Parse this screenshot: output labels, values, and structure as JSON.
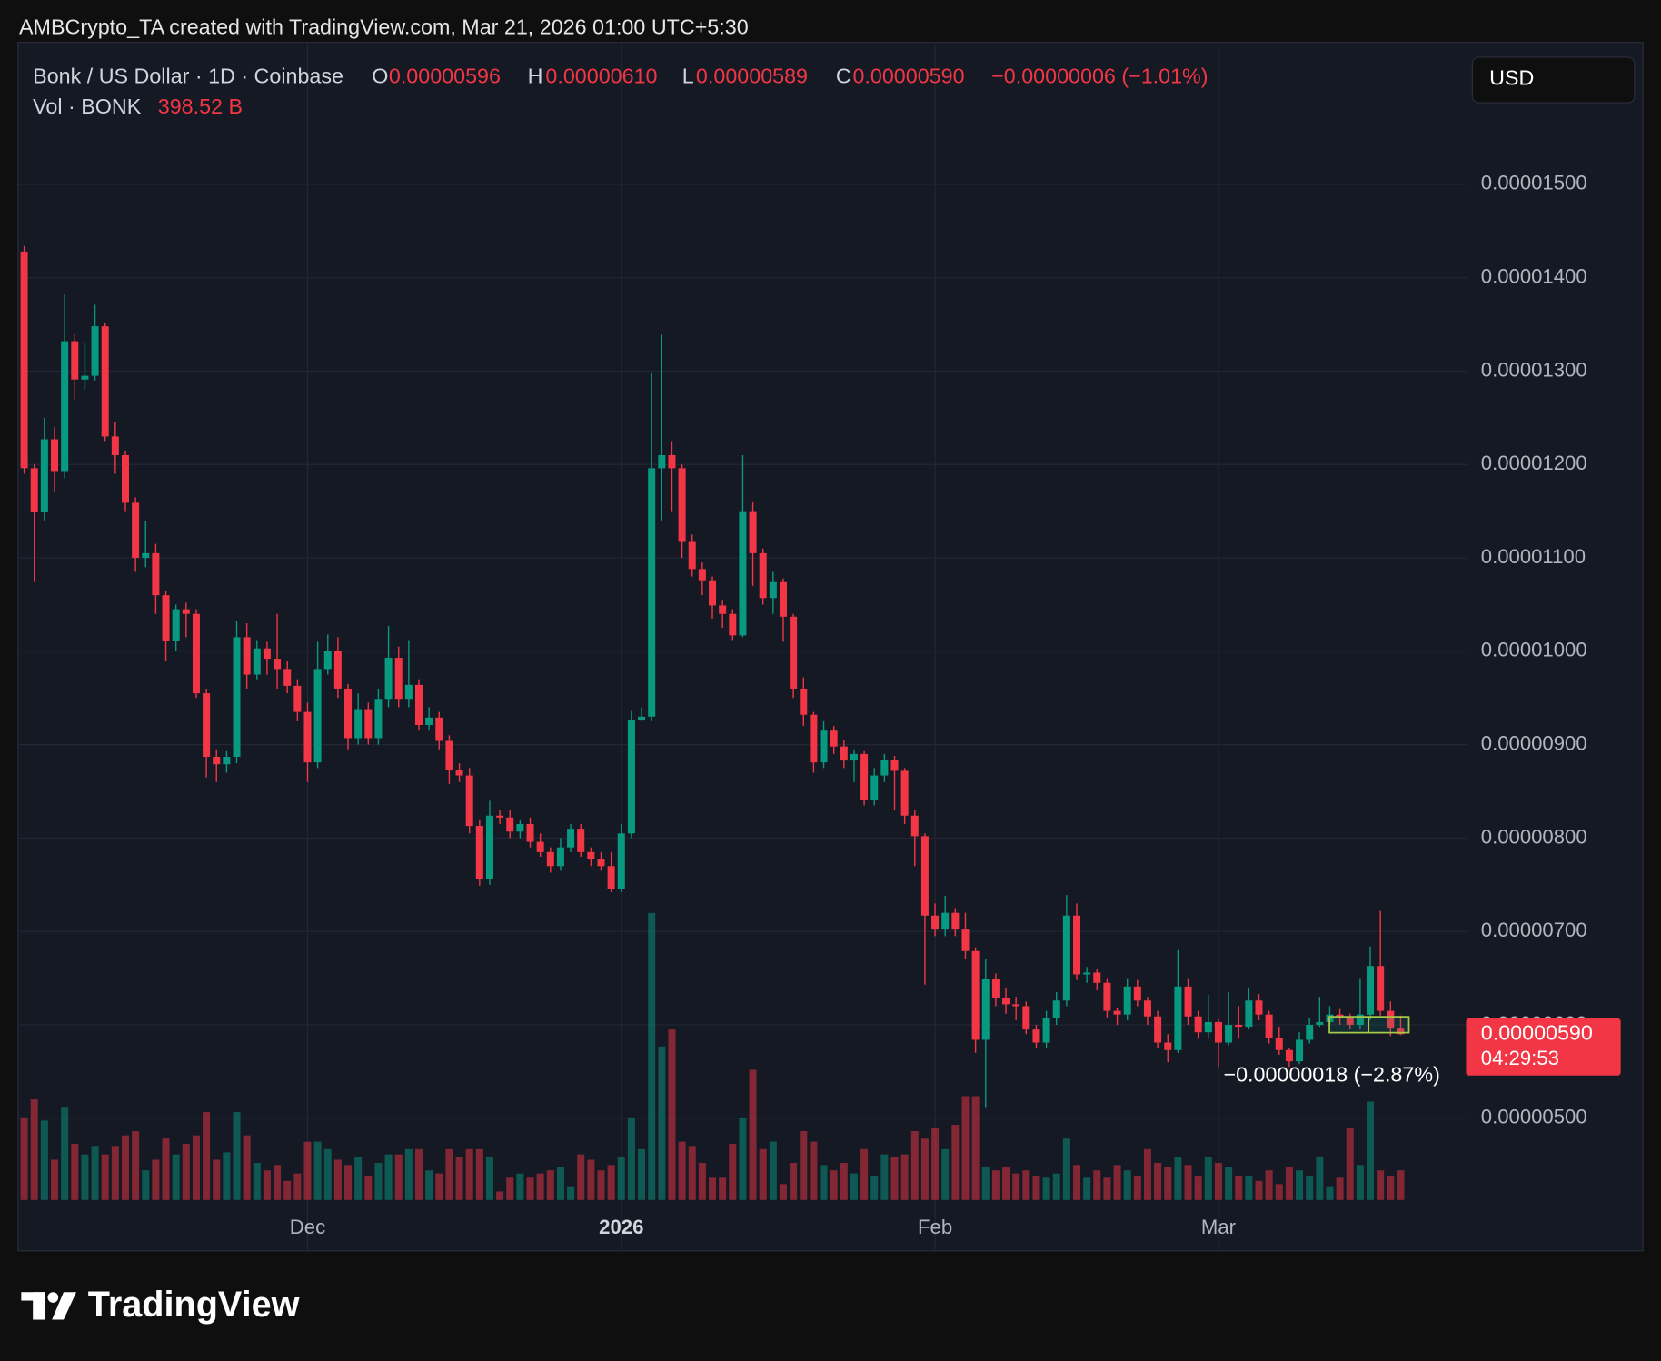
{
  "header": {
    "attribution": "AMBCrypto_TA created with TradingView.com, Mar 21, 2026 01:00 UTC+5:30"
  },
  "chart_data": {
    "type": "candlestick",
    "symbol": "Bonk / US Dollar · 1D · Coinbase",
    "ohlc_legend": {
      "o_label": "O",
      "open": "0.00000596",
      "h_label": "H",
      "high": "0.00000610",
      "l_label": "L",
      "low": "0.00000589",
      "c_label": "C",
      "close": "0.00000590",
      "change": "−0.00000006 (−1.01%)"
    },
    "volume_legend": {
      "label": "Vol · BONK",
      "value": "398.52 B"
    },
    "currency": "USD",
    "open": [
      1.428e-05,
      1.196e-05,
      1.149e-05,
      1.227e-05,
      1.193e-05,
      1.332e-05,
      1.291e-05,
      1.295e-05,
      1.348e-05,
      1.23e-05,
      1.21e-05,
      1.159e-05,
      1.1e-05,
      1.105e-05,
      1.06e-05,
      1.011e-05,
      1.045e-05,
      1.04e-05,
      9.55e-06,
      8.87e-06,
      8.79e-06,
      8.87e-06,
      1.015e-05,
      9.75e-06,
      1.003e-05,
      9.92e-06,
      9.81e-06,
      9.63e-06,
      9.35e-06,
      8.81e-06,
      9.81e-06,
      1e-05,
      9.6e-06,
      9.07e-06,
      9.38e-06,
      9.07e-06,
      9.49e-06,
      9.93e-06,
      9.49e-06,
      9.64e-06,
      9.21e-06,
      9.29e-06,
      9.04e-06,
      8.73e-06,
      8.67e-06,
      8.13e-06,
      7.56e-06,
      8.24e-06,
      8.22e-06,
      8.07e-06,
      8.15e-06,
      7.96e-06,
      7.85e-06,
      7.7e-06,
      7.9e-06,
      8.1e-06,
      7.85e-06,
      7.77e-06,
      7.7e-06,
      7.45e-06,
      8.05e-06,
      9.26e-06,
      9.3e-06,
      1.196e-05,
      1.21e-05,
      1.196e-05,
      1.117e-05,
      1.088e-05,
      1.076e-05,
      1.049e-05,
      1.04e-05,
      1.017e-05,
      1.15e-05,
      1.105e-05,
      1.057e-05,
      1.074e-05,
      1.037e-05,
      9.6e-06,
      9.32e-06,
      8.81e-06,
      9.15e-06,
      8.98e-06,
      8.83e-06,
      8.9e-06,
      8.41e-06,
      8.67e-06,
      8.84e-06,
      8.72e-06,
      8.24e-06,
      8.02e-06,
      7.17e-06,
      7.02e-06,
      7.2e-06,
      7.02e-06,
      6.79e-06,
      5.84e-06,
      6.49e-06,
      6.29e-06,
      6.22e-06,
      6.2e-06,
      5.95e-06,
      5.81e-06,
      6.07e-06,
      6.26e-06,
      7.17e-06,
      6.54e-06,
      6.56e-06,
      6.45e-06,
      6.15e-06,
      6.11e-06,
      6.41e-06,
      6.26e-06,
      6.09e-06,
      5.81e-06,
      5.73e-06,
      6.41e-06,
      6.09e-06,
      5.92e-06,
      6.03e-06,
      5.81e-06,
      6e-06,
      5.98e-06,
      6.26e-06,
      6.11e-06,
      5.86e-06,
      5.73e-06,
      5.61e-06,
      5.84e-06,
      6e-06,
      6.03e-06,
      6.11e-06,
      6.07e-06,
      6e-06,
      6.11e-06,
      6.63e-06,
      6.15e-06,
      5.96e-06
    ],
    "high": [
      1.434e-05,
      1.2e-05,
      1.25e-05,
      1.24e-05,
      1.382e-05,
      1.34e-05,
      1.33e-05,
      1.371e-05,
      1.352e-05,
      1.245e-05,
      1.215e-05,
      1.165e-05,
      1.14e-05,
      1.115e-05,
      1.065e-05,
      1.05e-05,
      1.052e-05,
      1.045e-05,
      9.6e-06,
      8.95e-06,
      8.93e-06,
      1.032e-05,
      1.03e-05,
      1.012e-05,
      1.01e-05,
      1.04e-05,
      9.9e-06,
      9.7e-06,
      9.45e-06,
      1.01e-05,
      1.018e-05,
      1.015e-05,
      9.65e-06,
      9.55e-06,
      9.45e-06,
      9.6e-06,
      1.027e-05,
      1.005e-05,
      1.012e-05,
      9.7e-06,
      9.4e-06,
      9.35e-06,
      9.1e-06,
      8.8e-06,
      8.75e-06,
      8.2e-06,
      8.4e-06,
      8.3e-06,
      8.3e-06,
      8.2e-06,
      8.22e-06,
      8.05e-06,
      7.9e-06,
      8e-06,
      8.15e-06,
      8.15e-06,
      7.9e-06,
      7.85e-06,
      7.85e-06,
      8.15e-06,
      9.36e-06,
      9.4e-06,
      1.298e-05,
      1.339e-05,
      1.225e-05,
      1.2e-05,
      1.125e-05,
      1.095e-05,
      1.08e-05,
      1.055e-05,
      1.045e-05,
      1.21e-05,
      1.16e-05,
      1.11e-05,
      1.085e-05,
      1.078e-05,
      1.04e-05,
      9.72e-06,
      9.35e-06,
      9.25e-06,
      9.2e-06,
      9.05e-06,
      8.95e-06,
      8.93e-06,
      8.75e-06,
      8.9e-06,
      8.88e-06,
      8.75e-06,
      8.3e-06,
      8.05e-06,
      7.3e-06,
      7.38e-06,
      7.25e-06,
      7.2e-06,
      6.83e-06,
      6.7e-06,
      6.55e-06,
      6.4e-06,
      6.3e-06,
      6.25e-06,
      6e-06,
      6.15e-06,
      6.35e-06,
      7.39e-06,
      7.3e-06,
      6.62e-06,
      6.6e-06,
      6.5e-06,
      6.18e-06,
      6.5e-06,
      6.48e-06,
      6.3e-06,
      6.15e-06,
      5.9e-06,
      6.8e-06,
      6.5e-06,
      6.15e-06,
      6.32e-06,
      6.06e-06,
      6.35e-06,
      6.2e-06,
      6.4e-06,
      6.33e-06,
      6.15e-06,
      5.98e-06,
      5.75e-06,
      5.92e-06,
      6.07e-06,
      6.3e-06,
      6.2e-06,
      6.17e-06,
      6.12e-06,
      6.5e-06,
      6.84e-06,
      7.22e-06,
      6.25e-06,
      6.1e-06
    ],
    "low": [
      1.19e-05,
      1.074e-05,
      1.14e-05,
      1.17e-05,
      1.185e-05,
      1.27e-05,
      1.28e-05,
      1.29e-05,
      1.225e-05,
      1.19e-05,
      1.15e-05,
      1.085e-05,
      1.09e-05,
      1.04e-05,
      9.9e-06,
      1e-05,
      1.015e-05,
      9.5e-06,
      8.65e-06,
      8.6e-06,
      8.7e-06,
      8.8e-06,
      9.6e-06,
      9.7e-06,
      9.75e-06,
      9.6e-06,
      9.55e-06,
      9.25e-06,
      8.6e-06,
      8.75e-06,
      9.75e-06,
      9.5e-06,
      8.95e-06,
      9e-06,
      9e-06,
      9e-06,
      9.4e-06,
      9.4e-06,
      9.4e-06,
      9.15e-06,
      9.15e-06,
      8.95e-06,
      8.58e-06,
      8.6e-06,
      8.05e-06,
      7.49e-06,
      7.5e-06,
      8.15e-06,
      8e-06,
      8e-06,
      7.9e-06,
      7.8e-06,
      7.63e-06,
      7.65e-06,
      7.85e-06,
      7.8e-06,
      7.7e-06,
      7.65e-06,
      7.42e-06,
      7.42e-06,
      8e-06,
      9.25e-06,
      9.25e-06,
      1.14e-05,
      1.15e-05,
      1.1e-05,
      1.08e-05,
      1.06e-05,
      1.035e-05,
      1.025e-05,
      1.012e-05,
      1.015e-05,
      1.07e-05,
      1.05e-05,
      1.04e-05,
      1.01e-05,
      9.5e-06,
      9.2e-06,
      8.7e-06,
      8.75e-06,
      8.9e-06,
      8.75e-06,
      8.6e-06,
      8.35e-06,
      8.35e-06,
      8.6e-06,
      8.3e-06,
      8.15e-06,
      7.7e-06,
      6.43e-06,
      6.95e-06,
      6.95e-06,
      6.95e-06,
      6.7e-06,
      5.7e-06,
      5.12e-06,
      6.2e-06,
      6.12e-06,
      6.05e-06,
      5.9e-06,
      5.75e-06,
      5.75e-06,
      6e-06,
      6.2e-06,
      6.48e-06,
      6.45e-06,
      6.37e-06,
      6.08e-06,
      6e-06,
      6.05e-06,
      6.2e-06,
      6e-06,
      5.75e-06,
      5.6e-06,
      5.7e-06,
      6e-06,
      5.85e-06,
      5.85e-06,
      5.55e-06,
      5.78e-06,
      5.85e-06,
      5.95e-06,
      6.05e-06,
      5.8e-06,
      5.68e-06,
      5.55e-06,
      5.58e-06,
      5.8e-06,
      5.98e-06,
      6e-06,
      6e-06,
      5.95e-06,
      5.95e-06,
      6.05e-06,
      6.1e-06,
      5.88e-06,
      5.89e-06
    ],
    "close": [
      1.196e-05,
      1.149e-05,
      1.227e-05,
      1.193e-05,
      1.332e-05,
      1.291e-05,
      1.295e-05,
      1.348e-05,
      1.23e-05,
      1.21e-05,
      1.159e-05,
      1.1e-05,
      1.105e-05,
      1.06e-05,
      1.011e-05,
      1.045e-05,
      1.04e-05,
      9.55e-06,
      8.87e-06,
      8.79e-06,
      8.87e-06,
      1.015e-05,
      9.75e-06,
      1.003e-05,
      9.92e-06,
      9.81e-06,
      9.63e-06,
      9.35e-06,
      8.81e-06,
      9.81e-06,
      1e-05,
      9.6e-06,
      9.07e-06,
      9.38e-06,
      9.07e-06,
      9.49e-06,
      9.93e-06,
      9.49e-06,
      9.64e-06,
      9.21e-06,
      9.29e-06,
      9.04e-06,
      8.73e-06,
      8.67e-06,
      8.13e-06,
      7.56e-06,
      8.24e-06,
      8.22e-06,
      8.07e-06,
      8.15e-06,
      7.96e-06,
      7.85e-06,
      7.7e-06,
      7.9e-06,
      8.1e-06,
      7.85e-06,
      7.77e-06,
      7.7e-06,
      7.45e-06,
      8.05e-06,
      9.26e-06,
      9.3e-06,
      1.196e-05,
      1.21e-05,
      1.196e-05,
      1.117e-05,
      1.088e-05,
      1.076e-05,
      1.049e-05,
      1.04e-05,
      1.017e-05,
      1.15e-05,
      1.105e-05,
      1.057e-05,
      1.074e-05,
      1.037e-05,
      9.6e-06,
      9.32e-06,
      8.81e-06,
      9.15e-06,
      8.98e-06,
      8.83e-06,
      8.9e-06,
      8.41e-06,
      8.67e-06,
      8.84e-06,
      8.72e-06,
      8.24e-06,
      8.02e-06,
      7.17e-06,
      7.02e-06,
      7.2e-06,
      7.02e-06,
      6.79e-06,
      5.84e-06,
      6.49e-06,
      6.29e-06,
      6.22e-06,
      6.2e-06,
      5.95e-06,
      5.81e-06,
      6.07e-06,
      6.26e-06,
      7.17e-06,
      6.54e-06,
      6.56e-06,
      6.45e-06,
      6.15e-06,
      6.11e-06,
      6.41e-06,
      6.26e-06,
      6.09e-06,
      5.81e-06,
      5.73e-06,
      6.41e-06,
      6.09e-06,
      5.92e-06,
      6.03e-06,
      5.81e-06,
      6e-06,
      5.98e-06,
      6.26e-06,
      6.11e-06,
      5.86e-06,
      5.73e-06,
      5.61e-06,
      5.84e-06,
      6e-06,
      6.03e-06,
      6.11e-06,
      6.07e-06,
      6e-06,
      6.11e-06,
      6.63e-06,
      6.15e-06,
      5.96e-06,
      5.9e-06
    ],
    "volume": [
      1110,
      1352,
      1067,
      541,
      1252,
      754,
      612,
      726,
      612,
      726,
      868,
      925,
      398,
      541,
      825,
      612,
      754,
      868,
      1181,
      541,
      640,
      1181,
      868,
      498,
      398,
      470,
      256,
      356,
      783,
      783,
      683,
      541,
      470,
      583,
      327,
      498,
      612,
      612,
      683,
      683,
      398,
      356,
      683,
      583,
      683,
      683,
      583,
      114,
      299,
      356,
      299,
      356,
      398,
      441,
      185,
      612,
      541,
      398,
      470,
      583,
      1110,
      683,
      3856,
      2063,
      2291,
      783,
      726,
      498,
      299,
      299,
      754,
      1110,
      1750,
      683,
      783,
      213,
      498,
      925,
      783,
      470,
      398,
      498,
      356,
      683,
      327,
      612,
      583,
      612,
      925,
      825,
      968,
      683,
      1010,
      1395,
      1395,
      441,
      398,
      441,
      356,
      398,
      327,
      299,
      356,
      825,
      470,
      299,
      398,
      299,
      470,
      398,
      327,
      683,
      498,
      441,
      583,
      470,
      327,
      583,
      498,
      441,
      327,
      327,
      256,
      398,
      213,
      441,
      398,
      327,
      583,
      185,
      299,
      968,
      470,
      1323,
      398,
      327,
      398.52
    ],
    "up_color": "#089981",
    "down_color": "#f23645",
    "xlim": [
      -0.5,
      141
    ],
    "xticks": [
      {
        "value": 28,
        "label": "Dec"
      },
      {
        "value": 59,
        "label": "2026"
      },
      {
        "value": 90,
        "label": "Feb"
      },
      {
        "value": 118,
        "label": "Mar"
      }
    ],
    "ylim": [
      3.58e-06,
      1.652e-05
    ],
    "yticks": [
      {
        "value": 5e-06,
        "label": "0.00000500"
      },
      {
        "value": 6e-06,
        "label": "0.00000600"
      },
      {
        "value": 7e-06,
        "label": "0.00000700"
      },
      {
        "value": 8e-06,
        "label": "0.00000800"
      },
      {
        "value": 9e-06,
        "label": "0.00000900"
      },
      {
        "value": 1e-05,
        "label": "0.00001000"
      },
      {
        "value": 1.1e-05,
        "label": "0.00001100"
      },
      {
        "value": 1.2e-05,
        "label": "0.00001200"
      },
      {
        "value": 1.3e-05,
        "label": "0.00001300"
      },
      {
        "value": 1.4e-05,
        "label": "0.00001400"
      },
      {
        "value": 1.5e-05,
        "label": "0.00001500"
      }
    ],
    "grid": true,
    "last_price_label": "0.00000590",
    "countdown": "04:29:53",
    "annotation": "−0.00000018 (−2.87%)"
  },
  "footer": {
    "logo": "TradingView"
  }
}
